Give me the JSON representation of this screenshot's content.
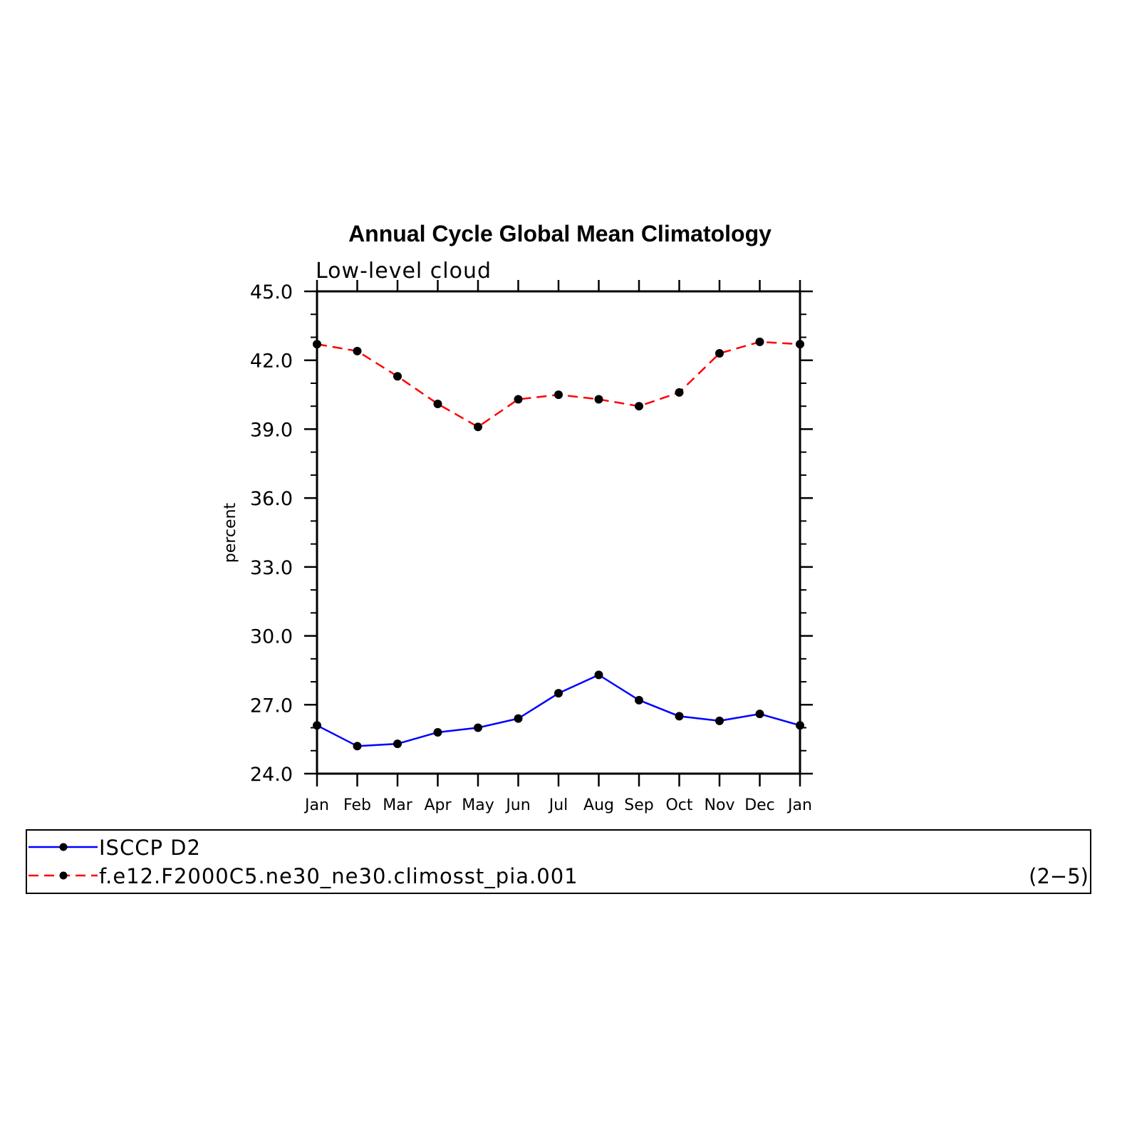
{
  "chart_data": {
    "type": "line",
    "title": "Annual Cycle Global Mean Climatology",
    "subtitle": "Low-level cloud",
    "ylabel": "percent",
    "xlabel": "",
    "ylim": [
      24.0,
      45.0
    ],
    "yticks": [
      "24.0",
      "27.0",
      "30.0",
      "33.0",
      "36.0",
      "39.0",
      "42.0",
      "45.0"
    ],
    "categories": [
      "Jan",
      "Feb",
      "Mar",
      "Apr",
      "May",
      "Jun",
      "Jul",
      "Aug",
      "Sep",
      "Oct",
      "Nov",
      "Dec",
      "Jan"
    ],
    "grid": false,
    "series": [
      {
        "name": "ISCCP D2",
        "color": "#0000ff",
        "dash": "solid",
        "values": [
          26.1,
          25.2,
          25.3,
          25.8,
          26.0,
          26.4,
          27.5,
          28.3,
          27.2,
          26.5,
          26.3,
          26.6,
          26.1
        ]
      },
      {
        "name": "f.e12.F2000C5.ne30_ne30.climosst_pia.001",
        "color": "#ff0000",
        "dash": "dashed",
        "values": [
          42.7,
          42.4,
          41.3,
          40.1,
          39.1,
          40.3,
          40.5,
          40.3,
          40.0,
          40.6,
          42.3,
          42.8,
          42.7
        ]
      }
    ],
    "legend_position": "bottom",
    "panel_label": "(2−5)"
  }
}
